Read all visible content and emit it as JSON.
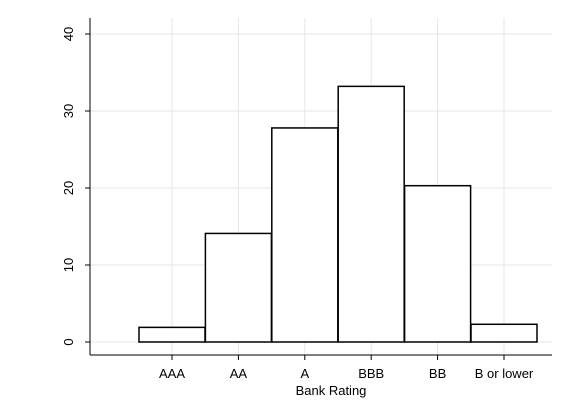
{
  "chart_data": {
    "type": "bar",
    "title": "",
    "xlabel": "Bank Rating",
    "ylabel": "",
    "categories": [
      "AAA",
      "AA",
      "A",
      "BBB",
      "BB",
      "B or lower"
    ],
    "values": [
      1.9,
      14.1,
      27.8,
      33.2,
      20.3,
      2.3
    ],
    "ylim": [
      0,
      40
    ],
    "yticks": [
      "0",
      "10",
      "20",
      "30",
      "40"
    ],
    "grid": true,
    "legend": "none",
    "colors": {
      "bar_fill": "#ffffff",
      "bar_stroke": "#000000",
      "grid": "#e6e6e6",
      "axis": "#000000",
      "background": "#ffffff"
    }
  }
}
